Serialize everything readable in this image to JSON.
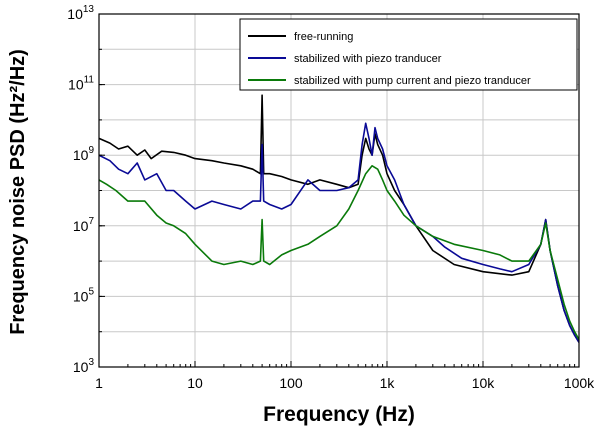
{
  "chart_data": {
    "type": "line",
    "xlabel": "Frequency (Hz)",
    "ylabel": "Frequency noise PSD (Hz²/Hz)",
    "xscale": "log",
    "yscale": "log",
    "xlim": [
      1,
      100000
    ],
    "ylim": [
      1000,
      10000000000000
    ],
    "grid": true,
    "legend_position": "top-right",
    "x_ticks": [
      {
        "value": 1,
        "label": "1"
      },
      {
        "value": 10,
        "label": "10"
      },
      {
        "value": 100,
        "label": "100"
      },
      {
        "value": 1000,
        "label": "1k"
      },
      {
        "value": 10000,
        "label": "10k"
      },
      {
        "value": 100000,
        "label": "100k"
      }
    ],
    "y_ticks": [
      {
        "value": 1000,
        "base": "10",
        "exp": "3"
      },
      {
        "value": 100000,
        "base": "10",
        "exp": "5"
      },
      {
        "value": 10000000,
        "base": "10",
        "exp": "7"
      },
      {
        "value": 1000000000,
        "base": "10",
        "exp": "9"
      },
      {
        "value": 100000000000,
        "base": "10",
        "exp": "11"
      },
      {
        "value": 10000000000000,
        "base": "10",
        "exp": "13"
      }
    ],
    "series": [
      {
        "name": "free-running",
        "color": "#000000",
        "points": [
          [
            1,
            3000000000
          ],
          [
            1.3,
            2200000000
          ],
          [
            1.6,
            1500000000
          ],
          [
            2,
            1800000000
          ],
          [
            2.5,
            1000000000
          ],
          [
            3,
            1400000000
          ],
          [
            3.5,
            800000000
          ],
          [
            4.5,
            1300000000
          ],
          [
            6,
            1200000000
          ],
          [
            8,
            1000000000
          ],
          [
            10,
            800000000
          ],
          [
            15,
            700000000
          ],
          [
            20,
            600000000
          ],
          [
            30,
            500000000
          ],
          [
            40,
            400000000
          ],
          [
            48,
            300000000
          ],
          [
            50,
            50000000000
          ],
          [
            52,
            300000000
          ],
          [
            60,
            300000000
          ],
          [
            80,
            250000000
          ],
          [
            100,
            200000000
          ],
          [
            150,
            150000000
          ],
          [
            200,
            200000000
          ],
          [
            300,
            150000000
          ],
          [
            400,
            120000000
          ],
          [
            500,
            150000000
          ],
          [
            550,
            1000000000
          ],
          [
            600,
            3000000000
          ],
          [
            650,
            1500000000
          ],
          [
            700,
            1000000000
          ],
          [
            750,
            4000000000
          ],
          [
            800,
            2000000000
          ],
          [
            900,
            1000000000
          ],
          [
            1000,
            300000000
          ],
          [
            1200,
            100000000
          ],
          [
            1500,
            40000000
          ],
          [
            2000,
            10000000
          ],
          [
            3000,
            2000000
          ],
          [
            5000,
            800000
          ],
          [
            10000,
            500000
          ],
          [
            20000,
            400000
          ],
          [
            30000,
            500000
          ],
          [
            40000,
            3000000
          ],
          [
            45000,
            15000000
          ],
          [
            50000,
            2000000
          ],
          [
            60000,
            200000
          ],
          [
            70000,
            40000
          ],
          [
            80000,
            15000
          ],
          [
            90000,
            8000
          ],
          [
            100000,
            5000
          ]
        ]
      },
      {
        "name": "stabilized with piezo tranducer",
        "color": "#0a0a96",
        "points": [
          [
            1,
            1000000000
          ],
          [
            1.3,
            700000000
          ],
          [
            1.6,
            400000000
          ],
          [
            2,
            300000000
          ],
          [
            2.5,
            600000000
          ],
          [
            3,
            200000000
          ],
          [
            4,
            300000000
          ],
          [
            5,
            100000000
          ],
          [
            6,
            100000000
          ],
          [
            8,
            50000000
          ],
          [
            10,
            30000000
          ],
          [
            15,
            50000000
          ],
          [
            20,
            40000000
          ],
          [
            30,
            30000000
          ],
          [
            40,
            50000000
          ],
          [
            48,
            50000000
          ],
          [
            50,
            2000000000
          ],
          [
            52,
            50000000
          ],
          [
            60,
            40000000
          ],
          [
            80,
            30000000
          ],
          [
            100,
            40000000
          ],
          [
            150,
            200000000
          ],
          [
            200,
            100000000
          ],
          [
            300,
            100000000
          ],
          [
            400,
            120000000
          ],
          [
            500,
            200000000
          ],
          [
            550,
            2000000000
          ],
          [
            600,
            8000000000
          ],
          [
            650,
            3000000000
          ],
          [
            700,
            1000000000
          ],
          [
            750,
            6000000000
          ],
          [
            800,
            3000000000
          ],
          [
            900,
            1500000000
          ],
          [
            1000,
            500000000
          ],
          [
            1200,
            200000000
          ],
          [
            1500,
            40000000
          ],
          [
            2000,
            10000000
          ],
          [
            3000,
            5000000
          ],
          [
            4000,
            2500000
          ],
          [
            6000,
            1200000
          ],
          [
            10000,
            800000
          ],
          [
            15000,
            600000
          ],
          [
            20000,
            500000
          ],
          [
            30000,
            800000
          ],
          [
            40000,
            3000000
          ],
          [
            45000,
            15000000
          ],
          [
            50000,
            2000000
          ],
          [
            60000,
            200000
          ],
          [
            70000,
            40000
          ],
          [
            80000,
            15000
          ],
          [
            90000,
            8000
          ],
          [
            100000,
            5000
          ]
        ]
      },
      {
        "name": "stabilized with pump current and piezo tranducer",
        "color": "#0a7a0a",
        "points": [
          [
            1,
            200000000
          ],
          [
            1.2,
            150000000
          ],
          [
            1.5,
            100000000
          ],
          [
            2,
            50000000
          ],
          [
            3,
            50000000
          ],
          [
            4,
            20000000
          ],
          [
            5,
            12000000
          ],
          [
            6,
            10000000
          ],
          [
            8,
            6000000
          ],
          [
            10,
            3000000
          ],
          [
            15,
            1000000
          ],
          [
            20,
            800000
          ],
          [
            30,
            1000000
          ],
          [
            40,
            800000
          ],
          [
            48,
            1000000
          ],
          [
            50,
            15000000
          ],
          [
            52,
            1000000
          ],
          [
            60,
            800000
          ],
          [
            80,
            1500000
          ],
          [
            100,
            2000000
          ],
          [
            150,
            3000000
          ],
          [
            200,
            5000000
          ],
          [
            300,
            10000000
          ],
          [
            400,
            30000000
          ],
          [
            500,
            100000000
          ],
          [
            600,
            300000000
          ],
          [
            700,
            500000000
          ],
          [
            800,
            400000000
          ],
          [
            900,
            200000000
          ],
          [
            1000,
            100000000
          ],
          [
            1200,
            50000000
          ],
          [
            1500,
            20000000
          ],
          [
            2000,
            10000000
          ],
          [
            3000,
            5000000
          ],
          [
            5000,
            3000000
          ],
          [
            10000,
            2000000
          ],
          [
            15000,
            1500000
          ],
          [
            20000,
            1000000
          ],
          [
            30000,
            1000000
          ],
          [
            40000,
            3000000
          ],
          [
            45000,
            12000000
          ],
          [
            50000,
            2000000
          ],
          [
            60000,
            300000
          ],
          [
            70000,
            60000
          ],
          [
            80000,
            20000
          ],
          [
            90000,
            10000
          ],
          [
            100000,
            6000
          ]
        ]
      }
    ]
  }
}
